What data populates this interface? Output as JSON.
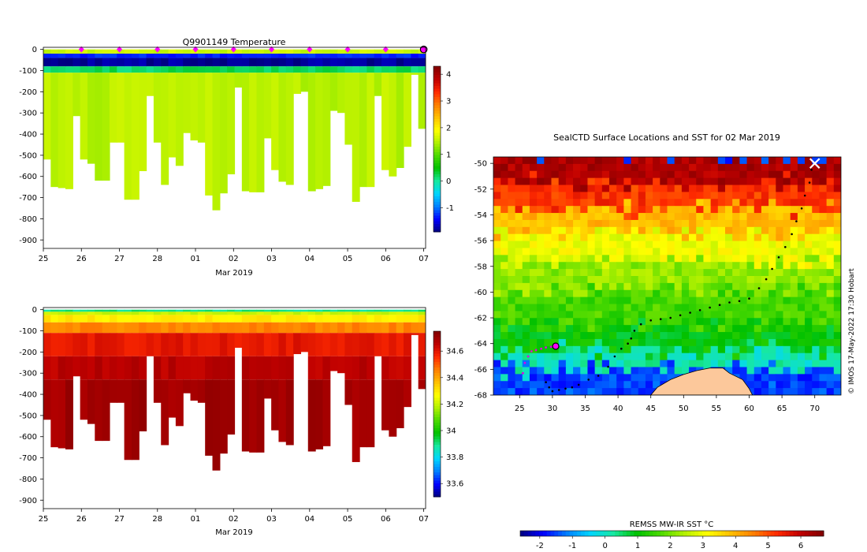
{
  "colors": {
    "jet": [
      "#00007f",
      "#0000ff",
      "#007fff",
      "#00d5ff",
      "#17e8a0",
      "#00c000",
      "#4ad900",
      "#b0f000",
      "#ffff00",
      "#ffc000",
      "#ff7f00",
      "#ff2a00",
      "#bf0000",
      "#800000"
    ],
    "land": "#fcc89b",
    "track": "#000000",
    "recent_track": "#e000e0",
    "marker": "#ff00ff"
  },
  "chart_data": [
    {
      "type": "heatmap",
      "id": "temperature",
      "title": "Q9901149  Temperature",
      "xlabel": "Mar 2019",
      "ylabel": "",
      "x_ticks": [
        "25",
        "26",
        "27",
        "28",
        "01",
        "02",
        "03",
        "04",
        "05",
        "06",
        "07"
      ],
      "x_range": [
        0,
        10.05
      ],
      "y_ticks": [
        0,
        -100,
        -200,
        -300,
        -400,
        -500,
        -600,
        -700,
        -800,
        -900
      ],
      "ylim": [
        -940,
        10
      ],
      "colorbar": {
        "min": -1.9,
        "max": 4.3,
        "ticks": [
          "-1",
          "0",
          "1",
          "2",
          "3",
          "4"
        ],
        "tick_values": [
          -1,
          0,
          1,
          2,
          3,
          4
        ]
      },
      "profile_max_depth": [
        520,
        650,
        655,
        660,
        315,
        520,
        540,
        620,
        620,
        440,
        440,
        710,
        710,
        575,
        220,
        440,
        640,
        510,
        550,
        395,
        430,
        440,
        690,
        760,
        680,
        590,
        180,
        670,
        675,
        675,
        420,
        570,
        625,
        640,
        210,
        200,
        670,
        660,
        645,
        290,
        300,
        450,
        720,
        650,
        650,
        220,
        570,
        600,
        560,
        460,
        120,
        375
      ],
      "profile_layers": [
        {
          "depth_from": 0,
          "depth_to": 20,
          "value": 1.6
        },
        {
          "depth_from": 20,
          "depth_to": 40,
          "value": -1.3
        },
        {
          "depth_from": 40,
          "depth_to": 80,
          "value": -1.8
        },
        {
          "depth_from": 80,
          "depth_to": 110,
          "value": 0.2
        },
        {
          "depth_from": 110,
          "depth_to": 900,
          "value": 1.5
        }
      ],
      "profile_markers_day": [
        1,
        2,
        3,
        4,
        5,
        6,
        7,
        8,
        9
      ],
      "latest_marker_day": 10.0
    },
    {
      "type": "heatmap",
      "id": "salinity",
      "title": "",
      "xlabel": "Mar 2019",
      "ylabel": "",
      "x_ticks": [
        "25",
        "26",
        "27",
        "28",
        "01",
        "02",
        "03",
        "04",
        "05",
        "06",
        "07"
      ],
      "x_range": [
        0,
        10.05
      ],
      "y_ticks": [
        0,
        -100,
        -200,
        -300,
        -400,
        -500,
        -600,
        -700,
        -800,
        -900
      ],
      "ylim": [
        -940,
        10
      ],
      "colorbar": {
        "min": 33.5,
        "max": 34.75,
        "ticks": [
          "33.6",
          "33.8",
          "34",
          "34.2",
          "34.4",
          "34.6"
        ],
        "tick_values": [
          33.6,
          33.8,
          34.0,
          34.2,
          34.4,
          34.6
        ]
      },
      "profile_layers": [
        {
          "depth_from": 0,
          "depth_to": 10,
          "value": 33.9
        },
        {
          "depth_from": 10,
          "depth_to": 25,
          "value": 34.2
        },
        {
          "depth_from": 25,
          "depth_to": 60,
          "value": 34.3
        },
        {
          "depth_from": 60,
          "depth_to": 110,
          "value": 34.45
        },
        {
          "depth_from": 110,
          "depth_to": 220,
          "value": 34.6
        },
        {
          "depth_from": 220,
          "depth_to": 330,
          "value": 34.66
        },
        {
          "depth_from": 330,
          "depth_to": 900,
          "value": 34.7
        }
      ]
    },
    {
      "type": "heatmap",
      "id": "sst-map",
      "title": "SealCTD Surface Locations and SST for 02 Mar 2019",
      "xlabel": "",
      "ylabel": "",
      "x_ticks": [
        "25",
        "30",
        "35",
        "40",
        "45",
        "50",
        "55",
        "60",
        "65",
        "70"
      ],
      "x_tick_values": [
        25,
        30,
        35,
        40,
        45,
        50,
        55,
        60,
        65,
        70
      ],
      "xlim": [
        21,
        74
      ],
      "y_ticks": [
        "-50",
        "-52",
        "-54",
        "-56",
        "-58",
        "-60",
        "-62",
        "-64",
        "-66",
        "-68"
      ],
      "y_tick_values": [
        -50,
        -52,
        -54,
        -56,
        -58,
        -60,
        -62,
        -64,
        -66,
        -68
      ],
      "ylim": [
        -68,
        -49.5
      ],
      "sst_bands": [
        {
          "lat_from": -49.5,
          "lat_to": -51.5,
          "value": 6.2
        },
        {
          "lat_from": -51.5,
          "lat_to": -53.5,
          "value": 5.2
        },
        {
          "lat_from": -53.5,
          "lat_to": -55.5,
          "value": 3.9
        },
        {
          "lat_from": -55.5,
          "lat_to": -57.5,
          "value": 3.0
        },
        {
          "lat_from": -57.5,
          "lat_to": -60.0,
          "value": 2.2
        },
        {
          "lat_from": -60.0,
          "lat_to": -62.5,
          "value": 1.6
        },
        {
          "lat_from": -62.5,
          "lat_to": -64.5,
          "value": 1.0
        },
        {
          "lat_from": -64.5,
          "lat_to": -66.0,
          "value": 0.1
        },
        {
          "lat_from": -66.0,
          "lat_to": -68.0,
          "value": -1.5
        }
      ],
      "antarctica_outline": [
        [
          45,
          -68
        ],
        [
          46,
          -67.4
        ],
        [
          48,
          -66.8
        ],
        [
          50,
          -66.4
        ],
        [
          52,
          -66.1
        ],
        [
          54,
          -65.9
        ],
        [
          56,
          -65.9
        ],
        [
          57,
          -66.3
        ],
        [
          59,
          -66.8
        ],
        [
          60,
          -67.5
        ],
        [
          60.5,
          -68
        ]
      ],
      "track_lon": [
        70,
        69.5,
        69.2,
        68.5,
        68,
        67.2,
        66.5,
        65.5,
        64.5,
        63.5,
        62.6,
        61.5,
        60,
        58.5,
        57,
        55.5,
        54,
        52.5,
        51,
        49.5,
        48,
        46.5,
        45,
        43.5,
        42.5,
        42,
        41.5,
        40.5,
        39.5,
        38.5,
        37,
        35.5,
        34,
        33,
        32,
        31,
        30,
        29.5,
        29
      ],
      "track_lat": [
        -50,
        -50.5,
        -51.5,
        -52.5,
        -53.5,
        -54.5,
        -55.5,
        -56.5,
        -57.3,
        -58.2,
        -59,
        -59.7,
        -60.5,
        -60.7,
        -60.8,
        -61,
        -61.2,
        -61.4,
        -61.6,
        -61.8,
        -62,
        -62.1,
        -62.2,
        -62.5,
        -63,
        -63.6,
        -64,
        -64.4,
        -65,
        -65.8,
        -66.5,
        -66.8,
        -67.2,
        -67.4,
        -67.5,
        -67.6,
        -67.7,
        -67.4,
        -67
      ],
      "recent_track_lon": [
        25.5,
        25.8,
        26.3,
        26.8,
        27.5,
        28.3,
        29,
        29.8,
        30.5
      ],
      "recent_track_lat": [
        -66.3,
        -65.5,
        -65,
        -64.6,
        -64.5,
        -64.4,
        -64.3,
        -64.25,
        -64.2
      ],
      "current_position": {
        "lon": 30.5,
        "lat": -64.2
      },
      "start_position": {
        "lon": 70,
        "lat": -50
      },
      "colorbar": {
        "label": "REMSS MW-IR SST °C",
        "min": -2.6,
        "max": 6.7,
        "ticks": [
          "-2",
          "-1",
          "0",
          "1",
          "2",
          "3",
          "4",
          "5",
          "6"
        ],
        "tick_values": [
          -2,
          -1,
          0,
          1,
          2,
          3,
          4,
          5,
          6
        ]
      }
    }
  ],
  "credit": "© IMOS 17-May-2022 17:30 Hobart"
}
